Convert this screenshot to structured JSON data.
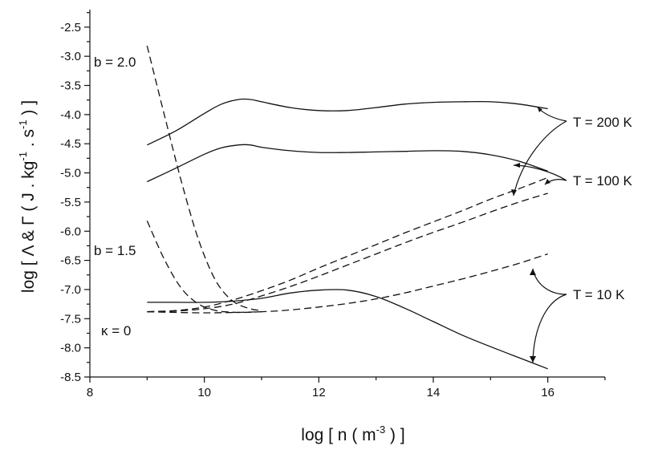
{
  "chart_data": {
    "type": "line",
    "xlabel_parts": {
      "pre": "log [ n ( m",
      "sup": "-3",
      "post": " ) ]"
    },
    "ylabel_parts": {
      "pre": "log [ Λ & Γ ( J . kg",
      "sup1": "-1",
      "mid": " . s",
      "sup2": "-1",
      "post": " ) ]"
    },
    "xlim": [
      8,
      17
    ],
    "ylim": [
      -8.5,
      -2.2
    ],
    "x_ticks": [
      8,
      10,
      12,
      14,
      16
    ],
    "x_tick_labels": [
      "8",
      "10",
      "12",
      "14",
      "16"
    ],
    "y_ticks": [
      -2.5,
      -3.0,
      -3.5,
      -4.0,
      -4.5,
      -5.0,
      -5.5,
      -6.0,
      -6.5,
      -7.0,
      -7.5,
      -8.0,
      -8.5
    ],
    "y_tick_labels": [
      "-2.5",
      "-3.0",
      "-3.5",
      "-4.0",
      "-4.5",
      "-5.0",
      "-5.5",
      "-6.0",
      "-6.5",
      "-7.0",
      "-7.5",
      "-8.0",
      "-8.5"
    ],
    "grid": false,
    "annotations": {
      "b_2": "b = 2.0",
      "b_1_5": "b = 1.5",
      "kappa_0": "κ = 0",
      "t_200": "T = 200 K",
      "t_100": "T = 100 K",
      "t_10": "T = 10 K"
    },
    "series": [
      {
        "style": "solid",
        "x": [
          9,
          9.5,
          10,
          10.3,
          10.6,
          10.8,
          11,
          11.5,
          12,
          12.5,
          13,
          13.5,
          14,
          14.5,
          15,
          15.5,
          16
        ],
        "y": [
          -4.52,
          -4.28,
          -3.98,
          -3.82,
          -3.74,
          -3.74,
          -3.78,
          -3.88,
          -3.93,
          -3.93,
          -3.88,
          -3.82,
          -3.79,
          -3.78,
          -3.78,
          -3.82,
          -3.9
        ]
      },
      {
        "style": "solid",
        "x": [
          9,
          9.5,
          10,
          10.3,
          10.6,
          10.8,
          11,
          11.5,
          12,
          12.5,
          13,
          13.5,
          14,
          14.5,
          15,
          15.5,
          16
        ],
        "y": [
          -5.15,
          -4.92,
          -4.68,
          -4.57,
          -4.52,
          -4.52,
          -4.56,
          -4.62,
          -4.65,
          -4.65,
          -4.64,
          -4.63,
          -4.62,
          -4.63,
          -4.69,
          -4.8,
          -4.97
        ]
      },
      {
        "style": "solid",
        "x": [
          9,
          9.5,
          10,
          10.5,
          11,
          11.5,
          12,
          12.5,
          13,
          13.5,
          14,
          14.5,
          15,
          15.5,
          16
        ],
        "y": [
          -7.22,
          -7.22,
          -7.22,
          -7.2,
          -7.15,
          -7.06,
          -7.01,
          -7.01,
          -7.12,
          -7.32,
          -7.55,
          -7.78,
          -7.98,
          -8.17,
          -8.36
        ]
      },
      {
        "style": "dash",
        "x": [
          9,
          9.3,
          9.6,
          9.9,
          10.2,
          10.5,
          10.8,
          11
        ],
        "y": [
          -2.82,
          -4.0,
          -5.15,
          -6.15,
          -6.85,
          -7.2,
          -7.33,
          -7.36
        ]
      },
      {
        "style": "dash",
        "x": [
          9,
          9.3,
          9.6,
          9.9,
          10.2,
          10.5,
          10.8,
          11
        ],
        "y": [
          -5.82,
          -6.48,
          -6.98,
          -7.25,
          -7.36,
          -7.39,
          -7.39,
          -7.38
        ]
      },
      {
        "style": "dash",
        "x": [
          9,
          9.5,
          10,
          10.5,
          11,
          11.5,
          12,
          12.5,
          13,
          13.5,
          14,
          14.5,
          15,
          15.5,
          16
        ],
        "y": [
          -7.38,
          -7.36,
          -7.3,
          -7.18,
          -7.02,
          -6.84,
          -6.63,
          -6.43,
          -6.23,
          -6.03,
          -5.84,
          -5.65,
          -5.45,
          -5.27,
          -5.08
        ]
      },
      {
        "style": "dash",
        "x": [
          9,
          9.5,
          10,
          10.5,
          11,
          11.5,
          12,
          12.5,
          13,
          13.5,
          14,
          14.5,
          15,
          15.5,
          16
        ],
        "y": [
          -7.38,
          -7.37,
          -7.33,
          -7.25,
          -7.11,
          -6.95,
          -6.77,
          -6.58,
          -6.39,
          -6.2,
          -6.02,
          -5.85,
          -5.67,
          -5.5,
          -5.35
        ]
      },
      {
        "style": "dash",
        "x": [
          9,
          10,
          11,
          11.5,
          12,
          12.5,
          13,
          13.5,
          14,
          14.5,
          15,
          15.5,
          16
        ],
        "y": [
          -7.38,
          -7.4,
          -7.38,
          -7.35,
          -7.3,
          -7.24,
          -7.16,
          -7.06,
          -6.94,
          -6.82,
          -6.69,
          -6.55,
          -6.39
        ]
      }
    ]
  }
}
